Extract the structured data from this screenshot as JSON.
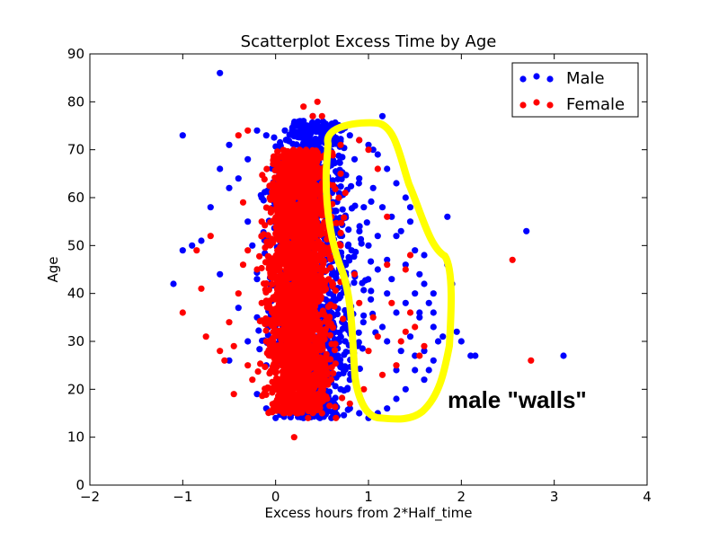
{
  "chart_data": {
    "type": "scatter",
    "title": "Scatterplot Excess Time by Age",
    "xlabel": "Excess hours from 2*Half_time",
    "ylabel": "Age",
    "xlim": [
      -2,
      4
    ],
    "ylim": [
      0,
      90
    ],
    "x_ticks": [
      "−2",
      "−1",
      "0",
      "1",
      "2",
      "3",
      "4"
    ],
    "y_ticks": [
      "0",
      "10",
      "20",
      "30",
      "40",
      "50",
      "60",
      "70",
      "80",
      "90"
    ],
    "grid": false,
    "legend_position": "top-right",
    "series": [
      {
        "name": "Male",
        "color": "#0000ff",
        "points": [
          [
            -0.6,
            86
          ],
          [
            -1.0,
            73
          ],
          [
            -1.1,
            42
          ],
          [
            -0.8,
            51
          ],
          [
            -0.9,
            50
          ],
          [
            -1.0,
            49
          ],
          [
            -0.6,
            44
          ],
          [
            -0.6,
            66
          ],
          [
            -0.5,
            71
          ],
          [
            -0.7,
            58
          ],
          [
            -0.4,
            64
          ],
          [
            -0.5,
            62
          ],
          [
            -0.3,
            68
          ],
          [
            -0.2,
            74
          ],
          [
            -0.1,
            73
          ],
          [
            -0.3,
            55
          ],
          [
            -0.4,
            37
          ],
          [
            -0.5,
            26
          ],
          [
            -0.3,
            30
          ],
          [
            -0.2,
            19
          ],
          [
            -0.1,
            16
          ],
          [
            0.0,
            14
          ],
          [
            0.1,
            17
          ],
          [
            0.2,
            75
          ],
          [
            0.3,
            76
          ],
          [
            0.1,
            74
          ],
          [
            0.4,
            77
          ],
          [
            0.6,
            75
          ],
          [
            0.7,
            74
          ],
          [
            0.8,
            73
          ],
          [
            0.9,
            72
          ],
          [
            1.0,
            71
          ],
          [
            1.1,
            69
          ],
          [
            1.15,
            77
          ],
          [
            1.2,
            66
          ],
          [
            1.3,
            63
          ],
          [
            1.4,
            60
          ],
          [
            1.25,
            56
          ],
          [
            1.45,
            55
          ],
          [
            1.3,
            52
          ],
          [
            1.5,
            49
          ],
          [
            1.4,
            46
          ],
          [
            1.55,
            44
          ],
          [
            1.6,
            42
          ],
          [
            1.5,
            40
          ],
          [
            1.65,
            38
          ],
          [
            1.55,
            35
          ],
          [
            1.7,
            33
          ],
          [
            1.8,
            31
          ],
          [
            1.6,
            28
          ],
          [
            1.7,
            26
          ],
          [
            1.5,
            24
          ],
          [
            1.6,
            22
          ],
          [
            1.4,
            20
          ],
          [
            1.3,
            18
          ],
          [
            1.2,
            16
          ],
          [
            1.1,
            15
          ],
          [
            1.0,
            14
          ],
          [
            0.9,
            15
          ],
          [
            0.8,
            16
          ],
          [
            1.2,
            30
          ],
          [
            1.3,
            36
          ],
          [
            1.1,
            45
          ],
          [
            1.0,
            50
          ],
          [
            0.95,
            58
          ],
          [
            1.05,
            62
          ],
          [
            1.2,
            40
          ],
          [
            1.35,
            28
          ],
          [
            1.85,
            46
          ],
          [
            1.9,
            42
          ],
          [
            1.95,
            32
          ],
          [
            1.85,
            56
          ],
          [
            2.0,
            30
          ],
          [
            2.1,
            27
          ],
          [
            2.15,
            27
          ],
          [
            2.7,
            53
          ],
          [
            3.1,
            27
          ],
          [
            0.5,
            15
          ],
          [
            0.3,
            14
          ],
          [
            0.6,
            14
          ],
          [
            1.3,
            24
          ],
          [
            1.45,
            31
          ],
          [
            1.55,
            36
          ],
          [
            1.7,
            40
          ],
          [
            1.2,
            47
          ],
          [
            1.35,
            53
          ],
          [
            1.45,
            58
          ],
          [
            1.05,
            70
          ],
          [
            0.85,
            68
          ],
          [
            0.9,
            64
          ],
          [
            0.75,
            30
          ],
          [
            0.8,
            22
          ],
          [
            0.7,
            20
          ],
          [
            1.15,
            33
          ],
          [
            1.25,
            43
          ],
          [
            1.4,
            38
          ],
          [
            -0.2,
            43
          ],
          [
            -0.25,
            50
          ],
          [
            -0.15,
            60
          ],
          [
            -0.2,
            35
          ],
          [
            -0.1,
            25
          ],
          [
            1.6,
            48
          ],
          [
            1.7,
            36
          ],
          [
            1.75,
            30
          ],
          [
            1.65,
            24
          ],
          [
            1.5,
            27
          ],
          [
            1.15,
            58
          ],
          [
            1.1,
            52
          ]
        ]
      },
      {
        "name": "Female",
        "color": "#ff0000",
        "points": [
          [
            -1.0,
            36
          ],
          [
            -0.85,
            49
          ],
          [
            -0.8,
            41
          ],
          [
            -0.7,
            52
          ],
          [
            -0.75,
            31
          ],
          [
            -0.6,
            28
          ],
          [
            -0.55,
            26
          ],
          [
            -0.5,
            34
          ],
          [
            -0.45,
            29
          ],
          [
            -0.45,
            19
          ],
          [
            -0.4,
            73
          ],
          [
            -0.3,
            74
          ],
          [
            -0.35,
            59
          ],
          [
            -0.3,
            49
          ],
          [
            -0.35,
            46
          ],
          [
            -0.4,
            40
          ],
          [
            -0.3,
            25
          ],
          [
            -0.25,
            22
          ],
          [
            -0.2,
            45
          ],
          [
            -0.15,
            55
          ],
          [
            -0.15,
            38
          ],
          [
            -0.1,
            30
          ],
          [
            0.2,
            10
          ],
          [
            0.45,
            80
          ],
          [
            0.3,
            79
          ],
          [
            0.4,
            77
          ],
          [
            0.5,
            77
          ],
          [
            0.7,
            71
          ],
          [
            0.9,
            72
          ],
          [
            1.0,
            70
          ],
          [
            1.1,
            66
          ],
          [
            1.3,
            71
          ],
          [
            1.2,
            56
          ],
          [
            1.2,
            46
          ],
          [
            1.4,
            45
          ],
          [
            1.45,
            48
          ],
          [
            1.5,
            33
          ],
          [
            1.35,
            30
          ],
          [
            1.55,
            27
          ],
          [
            1.6,
            29
          ],
          [
            1.4,
            32
          ],
          [
            1.3,
            25
          ],
          [
            1.15,
            23
          ],
          [
            1.05,
            35
          ],
          [
            0.9,
            38
          ],
          [
            0.85,
            44
          ],
          [
            1.0,
            28
          ],
          [
            0.95,
            20
          ],
          [
            0.8,
            17
          ],
          [
            0.65,
            14
          ],
          [
            0.5,
            15
          ],
          [
            0.35,
            14
          ],
          [
            0.15,
            15
          ],
          [
            0.0,
            16
          ],
          [
            -0.1,
            20
          ],
          [
            1.45,
            36
          ],
          [
            0.75,
            61
          ],
          [
            0.7,
            65
          ],
          [
            2.55,
            47
          ],
          [
            2.75,
            26
          ],
          [
            0.6,
            56
          ],
          [
            0.7,
            50
          ],
          [
            0.5,
            63
          ],
          [
            1.1,
            31
          ],
          [
            1.25,
            38
          ]
        ]
      }
    ],
    "dense_cluster": {
      "series": "Female",
      "x_range": [
        -0.3,
        0.85
      ],
      "y_range": [
        15,
        70
      ]
    },
    "dense_cluster_male": {
      "series": "Male",
      "x_range": [
        -0.3,
        1.4
      ],
      "y_range": [
        14,
        76
      ]
    },
    "annotation": {
      "text": "male \"walls\"",
      "color": "#ffff00"
    }
  }
}
